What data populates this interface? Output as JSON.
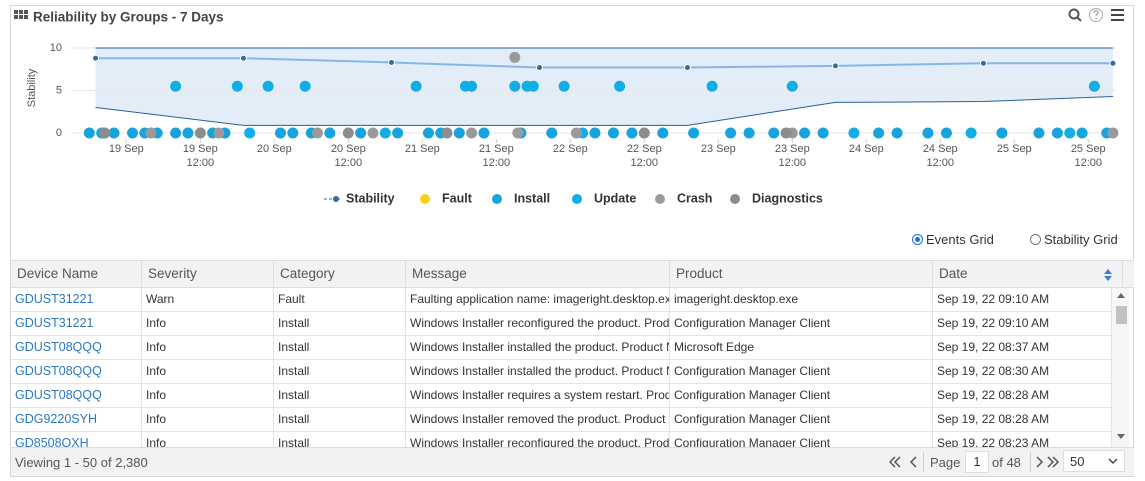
{
  "header": {
    "title": "Reliability by Groups - 7 Days"
  },
  "chart_data": {
    "type": "scatter",
    "y_label": "Stability",
    "xlim": [
      "18 Sep 16:00",
      "25 Sep 16:30"
    ],
    "xticks": [
      {
        "value": "19 Sep 00:00",
        "label": "19 Sep"
      },
      "19 Sep 12:00",
      {
        "value": "20 Sep 00:00",
        "label": "20 Sep"
      },
      "20 Sep 12:00",
      {
        "value": "21 Sep 00:00",
        "label": "21 Sep"
      },
      "21 Sep 12:00",
      {
        "value": "22 Sep 00:00",
        "label": "22 Sep"
      },
      "22 Sep 12:00",
      {
        "value": "23 Sep 00:00",
        "label": "23 Sep"
      },
      "23 Sep 12:00",
      {
        "value": "24 Sep 00:00",
        "label": "24 Sep"
      },
      "24 Sep 12:00",
      {
        "value": "25 Sep 00:00",
        "label": "25 Sep"
      },
      "25 Sep 12:00"
    ],
    "ylim": [
      0,
      10
    ],
    "yticks": [
      0,
      5,
      10
    ],
    "grid": true,
    "band": {
      "color": "#e2edf8",
      "edge_color": "#2a5f9a",
      "low": [
        3.0,
        0.9,
        0.9,
        0.9,
        0.9,
        3.6,
        3.7,
        4.3
      ],
      "high": [
        10,
        10,
        10,
        10,
        10,
        10,
        10,
        10
      ]
    },
    "series": [
      {
        "name": "Stability",
        "type": "line",
        "color": "#2e6ea8",
        "line_color": "#86b6e6",
        "x": [
          "18 Sep 19:00",
          "19 Sep 19:00",
          "20 Sep 19:00",
          "21 Sep 19:00",
          "22 Sep 19:00",
          "23 Sep 19:00",
          "24 Sep 19:00",
          "25 Sep 16:00"
        ],
        "values": [
          8.8,
          8.8,
          8.3,
          7.7,
          7.7,
          7.9,
          8.2,
          8.2
        ]
      },
      {
        "name": "Fault",
        "color": "#f5d21a",
        "x": [],
        "values": []
      },
      {
        "name": "Install",
        "color": "#17a3dc",
        "x": [
          "18 Sep 18:00",
          "18 Sep 20:00",
          "18 Sep 22:00",
          "19 Sep 01:00",
          "19 Sep 03:00",
          "19 Sep 05:00",
          "19 Sep 08:00",
          "19 Sep 10:00",
          "19 Sep 14:00",
          "19 Sep 16:00",
          "20 Sep 01:00",
          "20 Sep 03:00",
          "20 Sep 06:00",
          "20 Sep 09:00",
          "20 Sep 14:00",
          "20 Sep 20:00",
          "21 Sep 01:00",
          "21 Sep 03:00",
          "21 Sep 06:00",
          "21 Sep 10:00",
          "21 Sep 16:00",
          "21 Sep 21:00",
          "22 Sep 04:00",
          "22 Sep 07:00",
          "22 Sep 10:00",
          "22 Sep 15:00",
          "22 Sep 20:00",
          "23 Sep 02:00",
          "23 Sep 05:00",
          "23 Sep 09:00",
          "23 Sep 14:00",
          "23 Sep 17:00",
          "24 Sep 02:00",
          "24 Sep 05:00",
          "24 Sep 10:00",
          "24 Sep 13:00",
          "24 Sep 22:00",
          "25 Sep 04:00",
          "25 Sep 07:00",
          "25 Sep 11:00",
          "25 Sep 15:00"
        ],
        "values": [
          0,
          0,
          0,
          0,
          0,
          0,
          0,
          0,
          0,
          0,
          0,
          0,
          0,
          0,
          0,
          0,
          0,
          0,
          0,
          0,
          0,
          0,
          0,
          0,
          0,
          0,
          0,
          0,
          0,
          0,
          0,
          0,
          0,
          0,
          0,
          0,
          0,
          0,
          0,
          0,
          0
        ]
      },
      {
        "name": "Update",
        "color": "#12ade6",
        "x": [
          "19 Sep 08:00",
          "19 Sep 18:00",
          "19 Sep 23:00",
          "20 Sep 05:00",
          "20 Sep 23:00",
          "21 Sep 07:00",
          "21 Sep 08:00",
          "21 Sep 15:00",
          "21 Sep 17:00",
          "21 Sep 18:00",
          "21 Sep 23:00",
          "22 Sep 08:00",
          "22 Sep 23:00",
          "23 Sep 12:00",
          "25 Sep 13:00",
          "19 Sep 20:00",
          "20 Sep 18:00",
          "22 Sep 02:00",
          "23 Sep 22:00",
          "24 Sep 17:00",
          "25 Sep 09:00"
        ],
        "values": [
          5.5,
          5.5,
          5.5,
          5.5,
          5.5,
          5.5,
          5.5,
          5.5,
          5.5,
          5.5,
          5.5,
          5.5,
          5.5,
          5.5,
          5.5,
          0,
          0,
          0,
          0,
          0,
          0
        ]
      },
      {
        "name": "Crash",
        "color": "#9a9a9a",
        "x": [
          "21 Sep 15:00",
          "19 Sep 04:00",
          "19 Sep 15:00",
          "20 Sep 07:00",
          "20 Sep 16:00",
          "21 Sep 08:00",
          "21 Sep 15:30",
          "22 Sep 01:00",
          "23 Sep 12:00",
          "25 Sep 16:00"
        ],
        "values": [
          8.9,
          0,
          0,
          0,
          0,
          0,
          0,
          0,
          0,
          0
        ]
      },
      {
        "name": "Diagnostics",
        "color": "#8c8c8c",
        "x": [
          "18 Sep 20:30",
          "19 Sep 12:00",
          "20 Sep 12:00",
          "21 Sep 04:00",
          "22 Sep 12:00",
          "23 Sep 11:00"
        ],
        "values": [
          0,
          0,
          0,
          0,
          0,
          0
        ]
      }
    ]
  },
  "view_options": {
    "selected": 0,
    "options": [
      "Events Grid",
      "Stability Grid"
    ]
  },
  "table": {
    "columns": [
      "Device Name",
      "Severity",
      "Category",
      "Message",
      "Product",
      "Date"
    ],
    "sort_column": 5,
    "rows": [
      [
        "GDUST31221",
        "Warn",
        "Fault",
        "Faulting application name: imageright.desktop.ex",
        "imageright.desktop.exe",
        "Sep 19, 22 09:10 AM"
      ],
      [
        "GDUST31221",
        "Info",
        "Install",
        "Windows Installer reconfigured the product. Prod",
        "Configuration Manager Client",
        "Sep 19, 22 09:10 AM"
      ],
      [
        "GDUST08QQQ",
        "Info",
        "Install",
        "Windows Installer installed the product. Product N",
        "Microsoft Edge",
        "Sep 19, 22 08:37 AM"
      ],
      [
        "GDUST08QQQ",
        "Info",
        "Install",
        "Windows Installer installed the product. Product N",
        "Configuration Manager Client",
        "Sep 19, 22 08:30 AM"
      ],
      [
        "GDUST08QQQ",
        "Info",
        "Install",
        "Windows Installer requires a system restart. Prod",
        "Configuration Manager Client",
        "Sep 19, 22 08:28 AM"
      ],
      [
        "GDG9220SYH",
        "Info",
        "Install",
        "Windows Installer removed the product. Product",
        "Configuration Manager Client",
        "Sep 19, 22 08:28 AM"
      ],
      [
        "GD8508OXH",
        "Info",
        "Install",
        "Windows Installer reconfigured the product. Prod",
        "Configuration Manager Client",
        "Sep 19, 22 08:23 AM"
      ]
    ]
  },
  "footer": {
    "summary": "Viewing 1 - 50 of 2,380",
    "page_label": "Page",
    "page": "1",
    "of_pages": "of 48",
    "page_size": "50"
  }
}
